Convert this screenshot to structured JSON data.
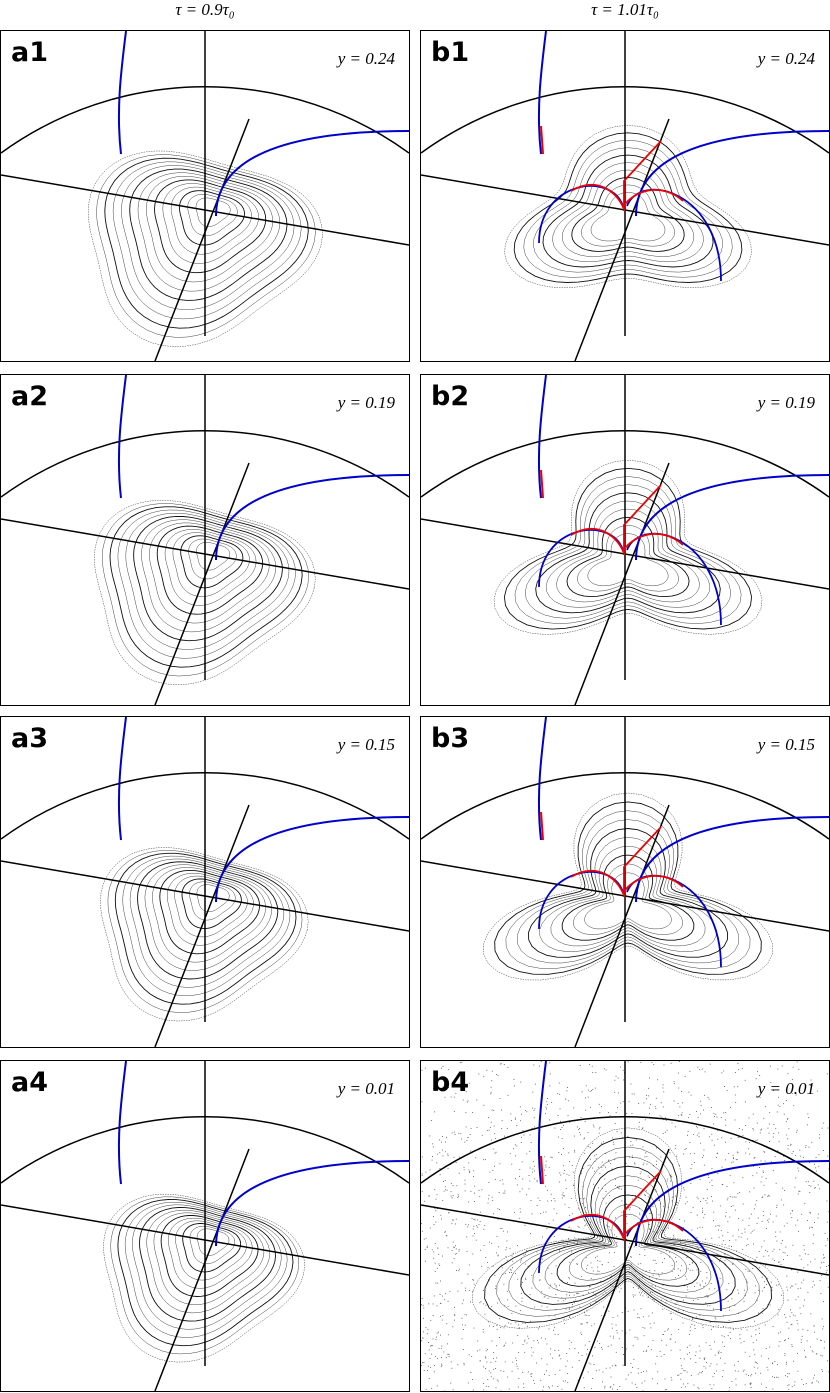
{
  "columns": [
    {
      "title": "τ = 0.9τ₀",
      "panels": [
        {
          "label": "a1",
          "annotation": "y = 0.24"
        },
        {
          "label": "a2",
          "annotation": "y = 0.19"
        },
        {
          "label": "a3",
          "annotation": "y = 0.15"
        },
        {
          "label": "a4",
          "annotation": "y = 0.01"
        }
      ]
    },
    {
      "title": "τ = 1.01τ₀",
      "panels": [
        {
          "label": "b1",
          "annotation": "y = 0.24"
        },
        {
          "label": "b2",
          "annotation": "y = 0.19"
        },
        {
          "label": "b3",
          "annotation": "y = 0.15"
        },
        {
          "label": "b4",
          "annotation": "y = 0.01"
        }
      ]
    }
  ]
}
